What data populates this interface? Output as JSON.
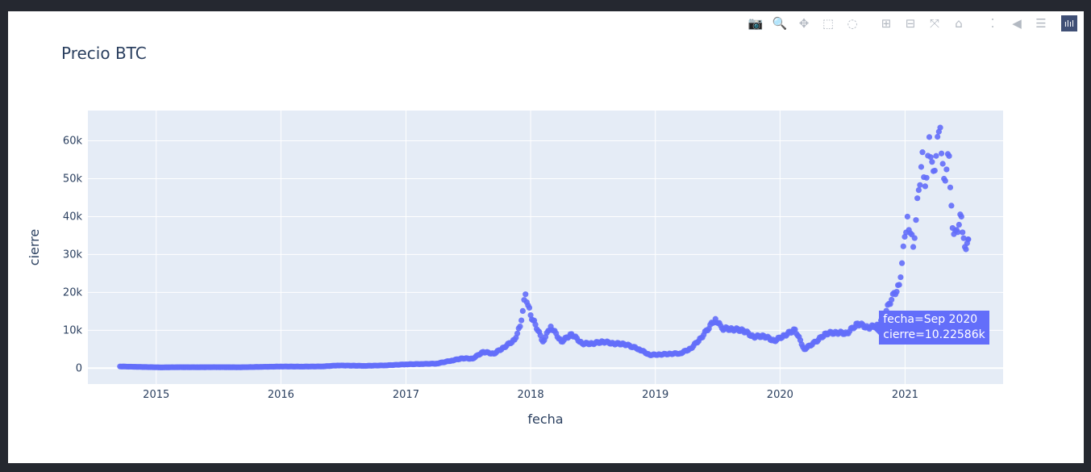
{
  "modebar": {
    "buttons": [
      {
        "name": "camera-icon",
        "glyph": "📷"
      },
      {
        "name": "zoom-icon",
        "glyph": "🔍",
        "active": true
      },
      {
        "name": "pan-icon",
        "glyph": "✥"
      },
      {
        "name": "box-select-icon",
        "glyph": "⬚"
      },
      {
        "name": "lasso-select-icon",
        "glyph": "◌"
      },
      {
        "gap": true
      },
      {
        "name": "zoom-in-icon",
        "glyph": "⊞"
      },
      {
        "name": "zoom-out-icon",
        "glyph": "⊟"
      },
      {
        "name": "autoscale-icon",
        "glyph": "⤧"
      },
      {
        "name": "reset-axes-icon",
        "glyph": "⌂"
      },
      {
        "gap": true
      },
      {
        "name": "spike-lines-icon",
        "glyph": "⁚"
      },
      {
        "name": "hover-closest-icon",
        "glyph": "◀"
      },
      {
        "name": "hover-compare-icon",
        "glyph": "☰"
      }
    ],
    "logo_glyph": "ılıl"
  },
  "chart_data": {
    "type": "scatter",
    "title": "Precio BTC",
    "xlabel": "fecha",
    "ylabel": "cierre",
    "xlim": [
      "2014-06-15",
      "2021-10-15"
    ],
    "ylim": [
      -4200,
      68000
    ],
    "x_ticks": [
      "2015",
      "2016",
      "2017",
      "2018",
      "2019",
      "2020",
      "2021"
    ],
    "y_ticks": [
      {
        "value": 0,
        "label": "0"
      },
      {
        "value": 10000,
        "label": "10k"
      },
      {
        "value": 20000,
        "label": "20k"
      },
      {
        "value": 30000,
        "label": "30k"
      },
      {
        "value": 40000,
        "label": "40k"
      },
      {
        "value": 50000,
        "label": "50k"
      },
      {
        "value": 60000,
        "label": "60k"
      }
    ],
    "grid": true,
    "marker_color": "#636efa",
    "plot_bg": "#e5ecf6",
    "series": [
      {
        "x": [
          "2014-09-17",
          "2014-11-01",
          "2015-01-15",
          "2015-03-01",
          "2015-05-01",
          "2015-07-01",
          "2015-09-01",
          "2015-11-01",
          "2016-01-01",
          "2016-03-01",
          "2016-05-01",
          "2016-06-15",
          "2016-09-01",
          "2016-11-01",
          "2017-01-01",
          "2017-02-15",
          "2017-04-01",
          "2017-05-15",
          "2017-06-15",
          "2017-07-15",
          "2017-08-15",
          "2017-09-15",
          "2017-10-15",
          "2017-11-15",
          "2017-12-01",
          "2017-12-17",
          "2018-01-01",
          "2018-01-15",
          "2018-02-06",
          "2018-03-01",
          "2018-04-01",
          "2018-05-01",
          "2018-06-01",
          "2018-07-01",
          "2018-08-01",
          "2018-09-01",
          "2018-10-01",
          "2018-11-15",
          "2018-12-15",
          "2019-01-15",
          "2019-02-15",
          "2019-03-15",
          "2019-04-15",
          "2019-05-15",
          "2019-06-26",
          "2019-07-15",
          "2019-08-15",
          "2019-09-15",
          "2019-10-15",
          "2019-11-15",
          "2019-12-15",
          "2020-01-15",
          "2020-02-14",
          "2020-03-12",
          "2020-04-15",
          "2020-05-15",
          "2020-06-15",
          "2020-07-15",
          "2020-08-15",
          "2020-09-15",
          "2020-10-15",
          "2020-11-15",
          "2020-12-15",
          "2021-01-08",
          "2021-01-25",
          "2021-02-10",
          "2021-02-21",
          "2021-03-01",
          "2021-03-13",
          "2021-03-25",
          "2021-04-14",
          "2021-04-25",
          "2021-05-10",
          "2021-05-20",
          "2021-06-01",
          "2021-06-15",
          "2021-06-25",
          "2021-07-05"
        ],
        "y": [
          450,
          350,
          200,
          250,
          240,
          260,
          230,
          330,
          430,
          410,
          450,
          700,
          600,
          720,
          1000,
          1100,
          1200,
          2000,
          2600,
          2500,
          4300,
          3800,
          5500,
          7500,
          11000,
          19500,
          14000,
          11500,
          7000,
          11000,
          7000,
          9000,
          6500,
          6500,
          7000,
          6500,
          6400,
          5000,
          3500,
          3600,
          3800,
          3900,
          5200,
          8000,
          13000,
          10500,
          10300,
          10000,
          8300,
          8500,
          7200,
          8700,
          10200,
          5000,
          7000,
          9200,
          9400,
          9200,
          11800,
          10700,
          11300,
          17000,
          22000,
          40000,
          32000,
          47000,
          57000,
          48000,
          61000,
          52000,
          63500,
          50000,
          56000,
          37000,
          36500,
          40000,
          32000,
          34000
        ]
      }
    ],
    "hover": {
      "fecha_label": "fecha=Sep 2020",
      "cierre_label": "cierre=10.22586k",
      "x": "2020-09-26",
      "y": 10225.86
    }
  }
}
